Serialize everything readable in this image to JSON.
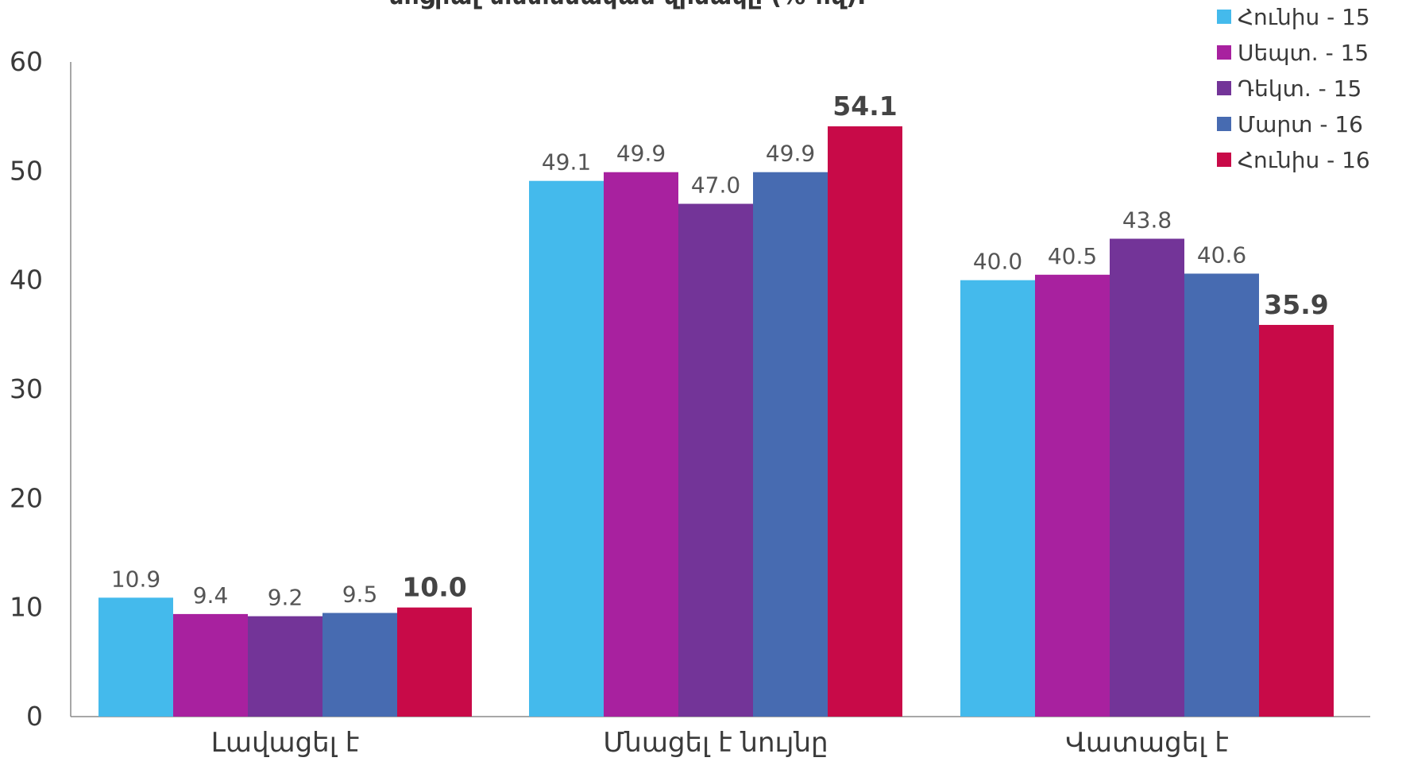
{
  "chart_data": {
    "type": "bar",
    "title": "սոցիալ-տնտեսական վիճակը (%-ով):",
    "categories": [
      "Լավացել է",
      "Մնացել է նույնը",
      "Վատացել է"
    ],
    "series": [
      {
        "name": "Հունիս - 15",
        "color": "#44BAEC",
        "values": [
          10.9,
          49.1,
          40.0
        ]
      },
      {
        "name": "Սեպտ. - 15",
        "color": "#A8219F",
        "values": [
          9.4,
          49.9,
          40.5
        ]
      },
      {
        "name": "Դեկտ. - 15",
        "color": "#733498",
        "values": [
          9.2,
          47.0,
          43.8
        ]
      },
      {
        "name": "Մարտ - 16",
        "color": "#476BB1",
        "values": [
          9.5,
          49.9,
          40.6
        ]
      },
      {
        "name": "Հունիս - 16",
        "color": "#C80A48",
        "values": [
          10.0,
          54.1,
          35.9
        ]
      }
    ],
    "highlight_series_index": 4,
    "y_ticks": [
      "0",
      "10",
      "20",
      "30",
      "40",
      "50",
      "60"
    ],
    "ylim": [
      0,
      60
    ],
    "grid": false,
    "legend_position": "top-right",
    "data_labels": true
  }
}
